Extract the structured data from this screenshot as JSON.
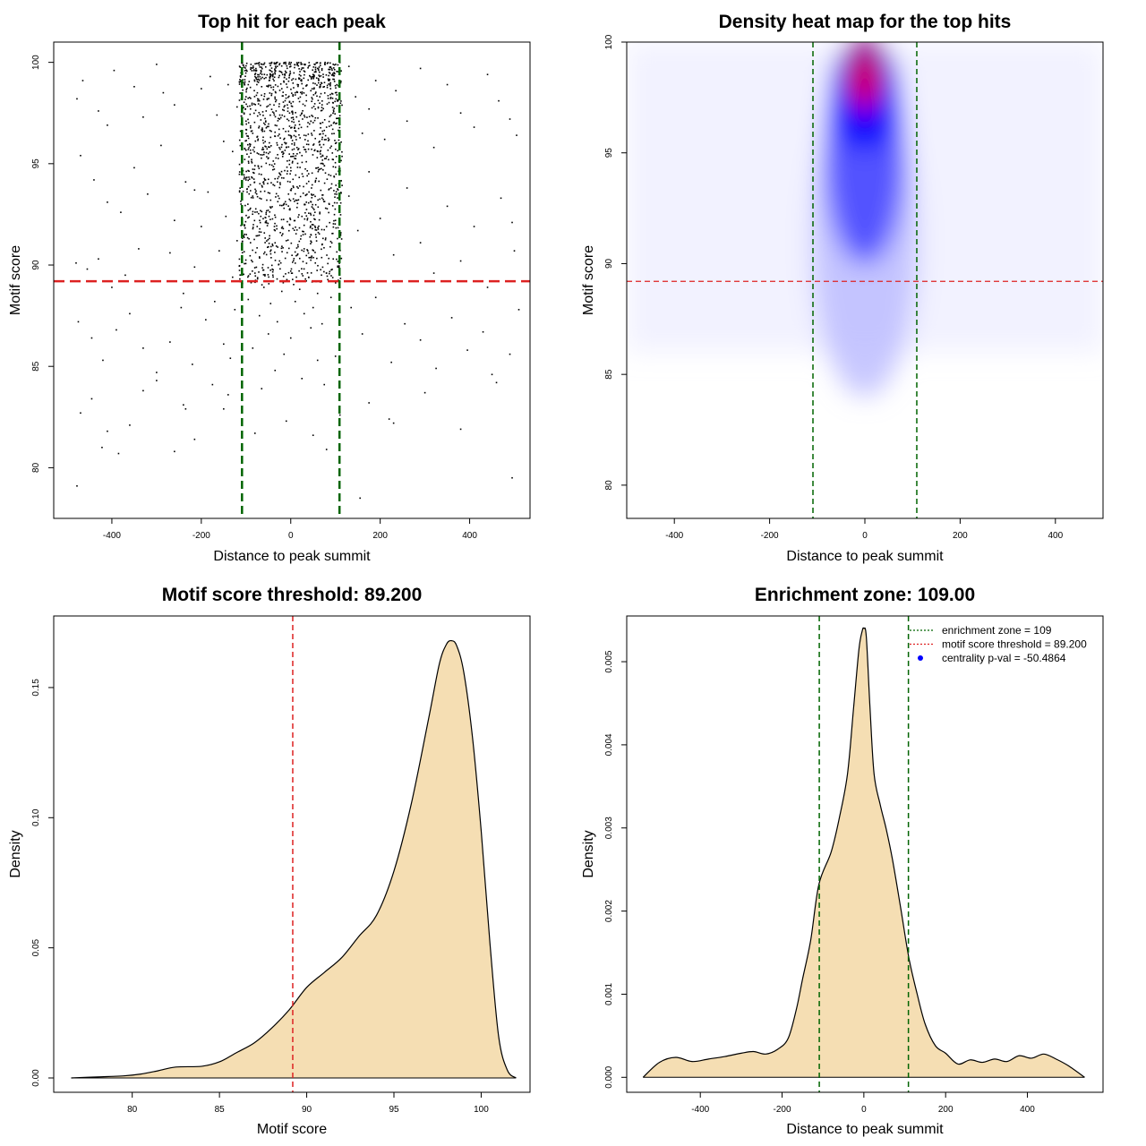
{
  "chart_data": [
    {
      "type": "scatter",
      "title": "Top hit for each peak",
      "xlabel": "Distance to peak summit",
      "ylabel": "Motif score",
      "xlim": [
        -530,
        535
      ],
      "ylim": [
        77.5,
        101
      ],
      "xticks": [
        -400,
        -200,
        0,
        200,
        400
      ],
      "yticks": [
        80,
        85,
        90,
        95,
        100
      ],
      "point_color": "#000000",
      "points": [
        [
          -478,
          98.2
        ],
        [
          -465,
          99.1
        ],
        [
          -430,
          97.6
        ],
        [
          -410,
          96.9
        ],
        [
          -395,
          99.6
        ],
        [
          -350,
          98.8
        ],
        [
          -330,
          97.3
        ],
        [
          -300,
          99.9
        ],
        [
          -285,
          98.5
        ],
        [
          -260,
          97.9
        ],
        [
          -470,
          95.4
        ],
        [
          -440,
          94.2
        ],
        [
          -410,
          93.1
        ],
        [
          -380,
          92.6
        ],
        [
          -350,
          94.8
        ],
        [
          -320,
          93.5
        ],
        [
          -290,
          95.9
        ],
        [
          -260,
          92.2
        ],
        [
          -235,
          94.1
        ],
        [
          -215,
          93.7
        ],
        [
          -480,
          90.1
        ],
        [
          -455,
          89.8
        ],
        [
          -430,
          90.3
        ],
        [
          -400,
          88.9
        ],
        [
          -370,
          89.5
        ],
        [
          -340,
          90.8
        ],
        [
          -300,
          89.2
        ],
        [
          -270,
          90.6
        ],
        [
          -240,
          88.6
        ],
        [
          -215,
          89.9
        ],
        [
          -475,
          87.2
        ],
        [
          -445,
          86.4
        ],
        [
          -420,
          85.3
        ],
        [
          -390,
          86.8
        ],
        [
          -360,
          87.6
        ],
        [
          -330,
          85.9
        ],
        [
          -300,
          84.7
        ],
        [
          -270,
          86.2
        ],
        [
          -245,
          87.9
        ],
        [
          -220,
          85.1
        ],
        [
          -470,
          82.7
        ],
        [
          -445,
          83.4
        ],
        [
          -410,
          81.8
        ],
        [
          -385,
          80.7
        ],
        [
          -360,
          82.1
        ],
        [
          -330,
          83.8
        ],
        [
          -300,
          84.3
        ],
        [
          -260,
          80.8
        ],
        [
          -235,
          82.9
        ],
        [
          -215,
          81.4
        ],
        [
          -478,
          79.1
        ],
        [
          -422,
          81.0
        ],
        [
          -240,
          83.1
        ],
        [
          -150,
          82.9
        ],
        [
          -80,
          81.7
        ],
        [
          155,
          78.5
        ],
        [
          80,
          80.9
        ],
        [
          110,
          82.6
        ],
        [
          230,
          82.2
        ],
        [
          495,
          79.5
        ],
        [
          -200,
          98.7
        ],
        [
          -180,
          99.3
        ],
        [
          -165,
          97.4
        ],
        [
          -150,
          96.1
        ],
        [
          -140,
          98.9
        ],
        [
          -130,
          95.6
        ],
        [
          -120,
          97.8
        ],
        [
          -200,
          91.9
        ],
        [
          -185,
          93.6
        ],
        [
          -160,
          90.7
        ],
        [
          -145,
          92.4
        ],
        [
          -130,
          89.4
        ],
        [
          -120,
          91.2
        ],
        [
          -190,
          87.3
        ],
        [
          -170,
          88.2
        ],
        [
          -150,
          86.1
        ],
        [
          -135,
          85.4
        ],
        [
          -125,
          87.8
        ],
        [
          -175,
          84.1
        ],
        [
          -140,
          83.6
        ],
        [
          130,
          99.8
        ],
        [
          145,
          98.3
        ],
        [
          160,
          96.5
        ],
        [
          175,
          97.7
        ],
        [
          190,
          99.1
        ],
        [
          210,
          96.2
        ],
        [
          235,
          98.6
        ],
        [
          260,
          97.1
        ],
        [
          290,
          99.7
        ],
        [
          320,
          95.8
        ],
        [
          350,
          98.9
        ],
        [
          380,
          97.5
        ],
        [
          410,
          96.8
        ],
        [
          440,
          99.4
        ],
        [
          465,
          98.1
        ],
        [
          490,
          97.2
        ],
        [
          505,
          96.4
        ],
        [
          130,
          93.4
        ],
        [
          150,
          91.7
        ],
        [
          175,
          94.6
        ],
        [
          200,
          92.3
        ],
        [
          230,
          90.5
        ],
        [
          260,
          93.8
        ],
        [
          290,
          91.1
        ],
        [
          320,
          89.6
        ],
        [
          350,
          92.9
        ],
        [
          380,
          90.2
        ],
        [
          410,
          91.9
        ],
        [
          440,
          88.9
        ],
        [
          470,
          93.3
        ],
        [
          495,
          92.1
        ],
        [
          500,
          90.7
        ],
        [
          135,
          87.9
        ],
        [
          160,
          86.6
        ],
        [
          190,
          88.4
        ],
        [
          225,
          85.2
        ],
        [
          255,
          87.1
        ],
        [
          290,
          86.3
        ],
        [
          325,
          84.9
        ],
        [
          360,
          87.4
        ],
        [
          395,
          85.8
        ],
        [
          430,
          86.7
        ],
        [
          460,
          84.2
        ],
        [
          490,
          85.6
        ],
        [
          510,
          87.8
        ],
        [
          175,
          83.2
        ],
        [
          220,
          82.4
        ],
        [
          300,
          83.7
        ],
        [
          380,
          81.9
        ],
        [
          450,
          84.6
        ],
        [
          -60,
          99.9
        ],
        [
          -30,
          100.0
        ],
        [
          0,
          99.8
        ],
        [
          30,
          99.9
        ],
        [
          60,
          99.7
        ],
        [
          -80,
          99.4
        ],
        [
          -45,
          99.3
        ],
        [
          -10,
          99.5
        ],
        [
          20,
          99.2
        ],
        [
          50,
          99.4
        ],
        [
          85,
          99.1
        ],
        [
          -95,
          98.9
        ],
        [
          -65,
          98.8
        ],
        [
          -20,
          98.7
        ],
        [
          15,
          98.9
        ],
        [
          45,
          98.6
        ],
        [
          75,
          98.8
        ],
        [
          100,
          98.5
        ],
        [
          -100,
          98.3
        ],
        [
          -70,
          98.1
        ],
        [
          -35,
          98.2
        ],
        [
          5,
          98.4
        ],
        [
          35,
          98.1
        ],
        [
          65,
          98.3
        ],
        [
          95,
          98.0
        ],
        [
          -90,
          97.7
        ],
        [
          -55,
          97.6
        ],
        [
          -15,
          97.8
        ],
        [
          25,
          97.5
        ],
        [
          55,
          97.7
        ],
        [
          90,
          97.4
        ],
        [
          -100,
          97.1
        ],
        [
          -60,
          97.0
        ],
        [
          -25,
          97.2
        ],
        [
          10,
          96.9
        ],
        [
          45,
          97.1
        ],
        [
          80,
          96.8
        ],
        [
          -85,
          96.5
        ],
        [
          -45,
          96.3
        ],
        [
          -5,
          96.6
        ],
        [
          30,
          96.4
        ],
        [
          70,
          96.2
        ],
        [
          100,
          96.0
        ],
        [
          -95,
          95.7
        ],
        [
          -50,
          95.5
        ],
        [
          -10,
          95.8
        ],
        [
          25,
          95.4
        ],
        [
          60,
          95.6
        ],
        [
          95,
          95.2
        ],
        [
          -80,
          94.9
        ],
        [
          -40,
          94.7
        ],
        [
          0,
          94.8
        ],
        [
          40,
          94.5
        ],
        [
          75,
          94.9
        ],
        [
          -100,
          94.2
        ],
        [
          -60,
          94.0
        ],
        [
          -20,
          94.3
        ],
        [
          20,
          93.9
        ],
        [
          55,
          94.1
        ],
        [
          90,
          93.8
        ],
        [
          -85,
          93.4
        ],
        [
          -45,
          93.2
        ],
        [
          -5,
          93.5
        ],
        [
          35,
          93.1
        ],
        [
          70,
          93.3
        ],
        [
          -95,
          92.7
        ],
        [
          -55,
          92.5
        ],
        [
          -15,
          92.8
        ],
        [
          25,
          92.4
        ],
        [
          65,
          92.6
        ],
        [
          100,
          92.2
        ],
        [
          -75,
          91.9
        ],
        [
          -35,
          91.7
        ],
        [
          5,
          91.8
        ],
        [
          45,
          91.5
        ],
        [
          80,
          91.9
        ],
        [
          -90,
          91.1
        ],
        [
          -50,
          90.9
        ],
        [
          -10,
          91.2
        ],
        [
          30,
          90.8
        ],
        [
          70,
          91.0
        ],
        [
          -70,
          90.4
        ],
        [
          -25,
          90.2
        ],
        [
          15,
          90.5
        ],
        [
          55,
          90.1
        ],
        [
          95,
          90.3
        ],
        [
          -80,
          89.6
        ],
        [
          -40,
          89.5
        ],
        [
          0,
          89.7
        ],
        [
          40,
          89.4
        ],
        [
          80,
          89.6
        ],
        [
          -60,
          88.9
        ],
        [
          -20,
          88.7
        ],
        [
          20,
          88.8
        ],
        [
          60,
          88.6
        ],
        [
          -95,
          88.3
        ],
        [
          -45,
          88.1
        ],
        [
          10,
          88.2
        ],
        [
          50,
          87.9
        ],
        [
          90,
          88.4
        ],
        [
          -70,
          87.5
        ],
        [
          -30,
          87.2
        ],
        [
          30,
          87.6
        ],
        [
          70,
          87.1
        ],
        [
          -50,
          86.6
        ],
        [
          0,
          86.4
        ],
        [
          45,
          86.9
        ],
        [
          -85,
          85.9
        ],
        [
          -15,
          85.6
        ],
        [
          60,
          85.3
        ],
        [
          -35,
          84.8
        ],
        [
          25,
          84.4
        ],
        [
          -65,
          83.9
        ],
        [
          75,
          84.1
        ],
        [
          -10,
          82.3
        ],
        [
          50,
          81.6
        ],
        [
          100,
          85.5
        ],
        [
          105,
          89.9
        ],
        [
          108,
          94.7
        ],
        [
          -108,
          95.1
        ]
      ],
      "dense_band": {
        "x_range": [
          -115,
          115
        ],
        "y_range": [
          89.0,
          100.0
        ]
      },
      "h_lines": [
        {
          "y": 89.2,
          "color": "#dd2222",
          "style": "dashed"
        }
      ],
      "v_lines": [
        {
          "x": -109,
          "color": "#006400",
          "style": "dashed"
        },
        {
          "x": 109,
          "color": "#006400",
          "style": "dashed"
        }
      ]
    },
    {
      "type": "heatmap",
      "title": "Density heat map for the top hits",
      "xlabel": "Distance to peak summit",
      "ylabel": "Motif score",
      "xlim": [
        -500,
        500
      ],
      "ylim": [
        78.5,
        100
      ],
      "xticks": [
        -400,
        -200,
        0,
        200,
        400
      ],
      "yticks": [
        80,
        85,
        90,
        95,
        100
      ],
      "colors": [
        "#ffffff",
        "#0000ff",
        "#ff0000"
      ],
      "peak": {
        "x": 0,
        "y": 98.2
      },
      "h_lines": [
        {
          "y": 89.2,
          "color": "#dd2222",
          "style": "dashed"
        }
      ],
      "v_lines": [
        {
          "x": -109,
          "color": "#006400",
          "style": "dashed"
        },
        {
          "x": 109,
          "color": "#006400",
          "style": "dashed"
        }
      ]
    },
    {
      "type": "area",
      "title": "Motif score threshold: 89.200",
      "xlabel": "Motif score",
      "ylabel": "Density",
      "xlim": [
        75.5,
        102.8
      ],
      "ylim": [
        -0.0055,
        0.1775
      ],
      "xticks": [
        80,
        85,
        90,
        95,
        100
      ],
      "yticks": [
        0.0,
        0.05,
        0.1,
        0.15
      ],
      "ytick_labels": [
        "0.00",
        "0.05",
        "0.10",
        "0.15"
      ],
      "fill_color": "#f5deb3",
      "x": [
        76.5,
        78,
        79.5,
        80.5,
        81.5,
        82.5,
        84,
        85,
        86,
        87,
        88,
        89,
        90,
        91,
        92,
        93,
        94,
        95,
        96,
        97,
        97.6,
        98,
        98.3,
        98.6,
        99,
        99.5,
        100,
        100.5,
        101,
        101.5,
        102
      ],
      "y": [
        0.0,
        0.0004,
        0.0008,
        0.0015,
        0.0028,
        0.0042,
        0.0045,
        0.0062,
        0.0098,
        0.0135,
        0.0192,
        0.0262,
        0.0348,
        0.0405,
        0.0462,
        0.0545,
        0.0625,
        0.0795,
        0.1055,
        0.1385,
        0.159,
        0.1665,
        0.168,
        0.166,
        0.156,
        0.131,
        0.095,
        0.052,
        0.016,
        0.003,
        0.0
      ],
      "v_lines": [
        {
          "x": 89.2,
          "color": "#dd2222",
          "style": "dashed"
        }
      ]
    },
    {
      "type": "area",
      "title": "Enrichment zone: 109.00",
      "xlabel": "Distance to peak summit",
      "ylabel": "Density",
      "xlim": [
        -580,
        585
      ],
      "ylim": [
        -0.00018,
        0.00555
      ],
      "xticks": [
        -400,
        -200,
        0,
        200,
        400
      ],
      "yticks": [
        0.0,
        0.001,
        0.002,
        0.003,
        0.004,
        0.005
      ],
      "ytick_labels": [
        "0.000",
        "0.001",
        "0.002",
        "0.003",
        "0.004",
        "0.005"
      ],
      "fill_color": "#f5deb3",
      "x": [
        -540,
        -500,
        -460,
        -420,
        -380,
        -340,
        -300,
        -270,
        -240,
        -210,
        -185,
        -165,
        -150,
        -130,
        -110,
        -80,
        -60,
        -40,
        -25,
        -12,
        -4,
        0,
        6,
        15,
        25,
        40,
        55,
        70,
        90,
        110,
        130,
        150,
        175,
        200,
        230,
        260,
        290,
        320,
        350,
        380,
        410,
        440,
        470,
        500,
        540
      ],
      "y": [
        0.0,
        0.00018,
        0.00024,
        0.00019,
        0.00022,
        0.00025,
        0.00029,
        0.00031,
        0.00028,
        0.00034,
        0.00047,
        0.00082,
        0.00118,
        0.00165,
        0.00232,
        0.00271,
        0.00312,
        0.00365,
        0.00445,
        0.00515,
        0.00537,
        0.0054,
        0.0053,
        0.00445,
        0.00365,
        0.00328,
        0.00298,
        0.00262,
        0.00204,
        0.00144,
        0.00101,
        0.00064,
        0.00038,
        0.00029,
        0.00016,
        0.00021,
        0.00018,
        0.00022,
        0.00019,
        0.00026,
        0.00023,
        0.00028,
        0.00022,
        0.00014,
        0.0
      ],
      "v_lines": [
        {
          "x": -109,
          "color": "#006400",
          "style": "dashed"
        },
        {
          "x": 109,
          "color": "#006400",
          "style": "dashed"
        }
      ],
      "legend": {
        "position": "top-right",
        "entries": [
          {
            "label": "enrichment zone = 109",
            "color": "#006400",
            "symbol": "dotted-line"
          },
          {
            "label": "motif score threshold = 89.200",
            "color": "#dd2222",
            "symbol": "dotted-line"
          },
          {
            "label": "centrality p-val = -50.4864",
            "color": "#0000ff",
            "symbol": "point"
          }
        ]
      }
    }
  ]
}
